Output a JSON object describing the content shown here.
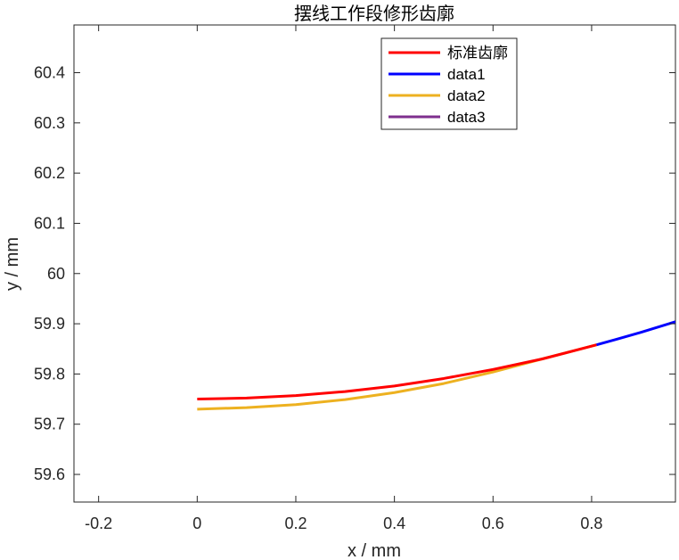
{
  "chart_data": {
    "type": "line",
    "title": "摆线工作段修形齿廓",
    "xlabel": "x / mm",
    "ylabel": "y / mm",
    "xlim": [
      -0.25,
      0.97
    ],
    "ylim": [
      59.545,
      60.495
    ],
    "x_ticks": [
      -0.2,
      0,
      0.2,
      0.4,
      0.6,
      0.8
    ],
    "x_tick_labels": [
      "-0.2",
      "0",
      "0.2",
      "0.4",
      "0.6",
      "0.8"
    ],
    "y_ticks": [
      59.6,
      59.7,
      59.8,
      59.9,
      60,
      60.1,
      60.2,
      60.3,
      60.4
    ],
    "y_tick_labels": [
      "59.6",
      "59.7",
      "59.8",
      "59.9",
      "60",
      "60.1",
      "60.2",
      "60.3",
      "60.4"
    ],
    "grid": false,
    "legend_position": "top-right",
    "series": [
      {
        "name": "标准齿廓",
        "color": "#ff0000",
        "x": [
          0,
          0.1,
          0.2,
          0.3,
          0.4,
          0.5,
          0.6,
          0.7,
          0.81
        ],
        "y": [
          59.75,
          59.752,
          59.757,
          59.765,
          59.776,
          59.791,
          59.809,
          59.83,
          59.858
        ]
      },
      {
        "name": "data1",
        "color": "#0000ff",
        "x": [
          0.81,
          0.85,
          0.9,
          0.97
        ],
        "y": [
          59.858,
          59.869,
          59.883,
          59.904
        ]
      },
      {
        "name": "data2",
        "color": "#edb120",
        "x": [
          0,
          0.1,
          0.2,
          0.3,
          0.4,
          0.5,
          0.6,
          0.7,
          0.81
        ],
        "y": [
          59.73,
          59.733,
          59.739,
          59.749,
          59.763,
          59.781,
          59.804,
          59.83,
          59.858
        ]
      },
      {
        "name": "data3",
        "color": "#7e2f8e",
        "x": [],
        "y": []
      }
    ]
  }
}
